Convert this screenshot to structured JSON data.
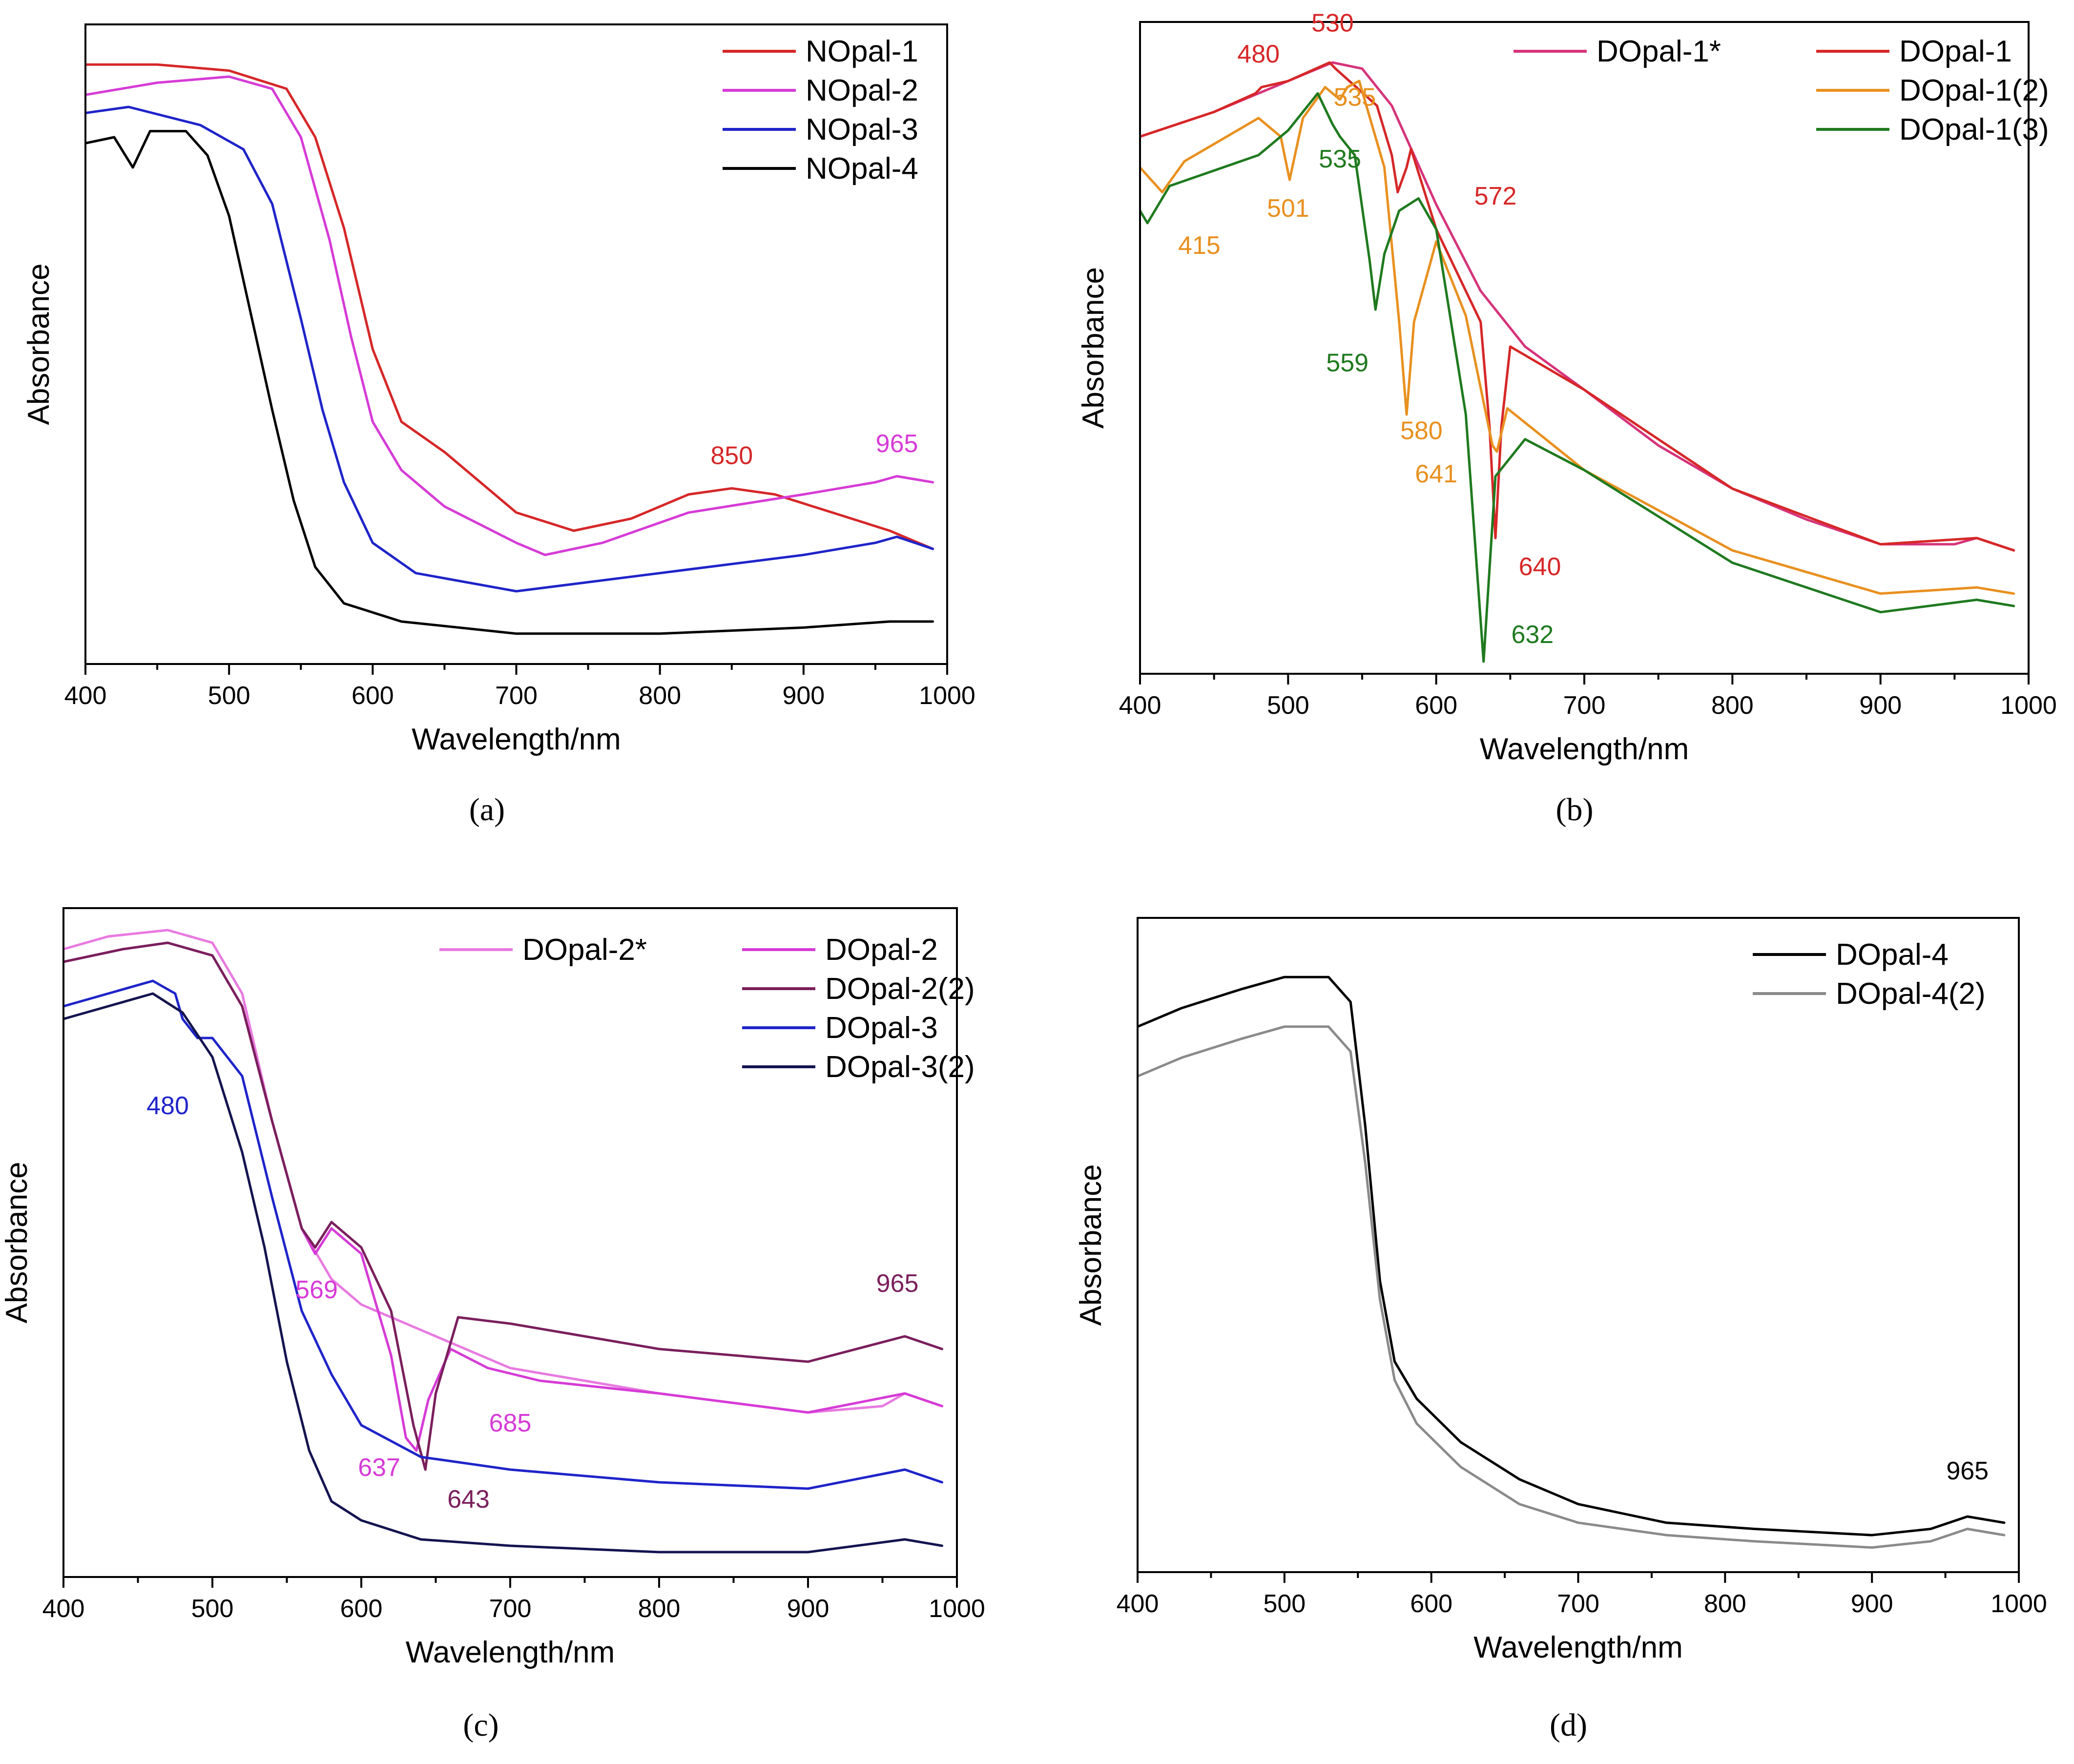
{
  "chart_data": [
    {
      "type": "line",
      "panel_label": "(a)",
      "xlabel": "Wavelength/nm",
      "ylabel": "Absorbance",
      "xlim": [
        400,
        1000
      ],
      "ylim": [
        0,
        1
      ],
      "xticks": [
        400,
        500,
        600,
        700,
        800,
        900,
        1000
      ],
      "legend_position": "top-right",
      "series": [
        {
          "name": "NOpal-1",
          "color": "#d62728",
          "x": [
            400,
            450,
            500,
            540,
            560,
            580,
            600,
            620,
            650,
            700,
            740,
            780,
            820,
            850,
            880,
            920,
            960,
            990
          ],
          "y": [
            0.97,
            0.97,
            0.96,
            0.93,
            0.85,
            0.7,
            0.5,
            0.38,
            0.33,
            0.23,
            0.2,
            0.22,
            0.26,
            0.27,
            0.26,
            0.23,
            0.2,
            0.17
          ]
        },
        {
          "name": "NOpal-2",
          "color": "#d63bd6",
          "x": [
            400,
            450,
            500,
            530,
            550,
            570,
            585,
            600,
            620,
            650,
            700,
            720,
            760,
            820,
            900,
            950,
            965,
            990
          ],
          "y": [
            0.92,
            0.94,
            0.95,
            0.93,
            0.85,
            0.68,
            0.52,
            0.38,
            0.3,
            0.24,
            0.18,
            0.16,
            0.18,
            0.23,
            0.26,
            0.28,
            0.29,
            0.28
          ]
        },
        {
          "name": "NOpal-3",
          "color": "#1f24c9",
          "x": [
            400,
            430,
            480,
            510,
            530,
            550,
            565,
            580,
            600,
            630,
            700,
            800,
            900,
            950,
            965,
            990
          ],
          "y": [
            0.89,
            0.9,
            0.87,
            0.83,
            0.74,
            0.55,
            0.4,
            0.28,
            0.18,
            0.13,
            0.1,
            0.13,
            0.16,
            0.18,
            0.19,
            0.17
          ]
        },
        {
          "name": "NOpal-4",
          "color": "#000000",
          "x": [
            400,
            420,
            433,
            445,
            470,
            485,
            500,
            515,
            530,
            545,
            560,
            580,
            620,
            700,
            800,
            900,
            960,
            990
          ],
          "y": [
            0.84,
            0.85,
            0.8,
            0.86,
            0.86,
            0.82,
            0.72,
            0.56,
            0.4,
            0.25,
            0.14,
            0.08,
            0.05,
            0.03,
            0.03,
            0.04,
            0.05,
            0.05
          ]
        }
      ],
      "annotations": [
        {
          "text": "850",
          "color": "#d62728",
          "x": 850,
          "y": 0.31
        },
        {
          "text": "965",
          "color": "#d63bd6",
          "x": 965,
          "y": 0.33
        }
      ]
    },
    {
      "type": "line",
      "panel_label": "(b)",
      "xlabel": "Wavelength/nm",
      "ylabel": "Absorbance",
      "xlim": [
        400,
        1000
      ],
      "ylim": [
        0,
        1
      ],
      "xticks": [
        400,
        500,
        600,
        700,
        800,
        900,
        1000
      ],
      "legend_position": "top-right",
      "series": [
        {
          "name": "DOpal-1*",
          "color": "#d6337a",
          "x": [
            400,
            450,
            500,
            530,
            550,
            570,
            600,
            630,
            660,
            700,
            750,
            800,
            850,
            900,
            950,
            965,
            990
          ],
          "y": [
            0.85,
            0.89,
            0.94,
            0.97,
            0.96,
            0.9,
            0.74,
            0.6,
            0.51,
            0.44,
            0.35,
            0.28,
            0.23,
            0.19,
            0.19,
            0.2,
            0.18
          ]
        },
        {
          "name": "DOpal-1",
          "color": "#d62728",
          "x": [
            400,
            450,
            478,
            482,
            500,
            528,
            532,
            560,
            570,
            574,
            580,
            583,
            600,
            630,
            636,
            640,
            644,
            650,
            700,
            800,
            900,
            965,
            990
          ],
          "y": [
            0.85,
            0.89,
            0.92,
            0.93,
            0.94,
            0.97,
            0.96,
            0.9,
            0.82,
            0.76,
            0.8,
            0.83,
            0.7,
            0.55,
            0.38,
            0.2,
            0.38,
            0.51,
            0.44,
            0.28,
            0.19,
            0.2,
            0.18
          ]
        },
        {
          "name": "DOpal-1(2)",
          "color": "#e8901f",
          "x": [
            400,
            415,
            430,
            480,
            495,
            501,
            510,
            525,
            535,
            540,
            548,
            565,
            575,
            580,
            585,
            600,
            620,
            638,
            641,
            648,
            700,
            800,
            900,
            965,
            990
          ],
          "y": [
            0.8,
            0.76,
            0.81,
            0.88,
            0.85,
            0.78,
            0.88,
            0.93,
            0.91,
            0.93,
            0.94,
            0.8,
            0.55,
            0.4,
            0.55,
            0.68,
            0.56,
            0.35,
            0.34,
            0.41,
            0.31,
            0.18,
            0.11,
            0.12,
            0.11
          ]
        },
        {
          "name": "DOpal-1(3)",
          "color": "#1f7a1f",
          "x": [
            400,
            405,
            420,
            480,
            500,
            520,
            530,
            535,
            545,
            555,
            559,
            565,
            575,
            588,
            600,
            620,
            632,
            640,
            660,
            700,
            800,
            900,
            965,
            990
          ],
          "y": [
            0.73,
            0.71,
            0.77,
            0.82,
            0.86,
            0.92,
            0.87,
            0.85,
            0.82,
            0.65,
            0.57,
            0.66,
            0.73,
            0.75,
            0.7,
            0.4,
            0.0,
            0.3,
            0.36,
            0.31,
            0.16,
            0.08,
            0.1,
            0.09
          ]
        }
      ],
      "annotations": [
        {
          "text": "480",
          "color": "#d62728",
          "x": 480,
          "y": 0.97
        },
        {
          "text": "530",
          "color": "#d62728",
          "x": 530,
          "y": 1.02
        },
        {
          "text": "535",
          "color": "#e8901f",
          "x": 545,
          "y": 0.9
        },
        {
          "text": "535",
          "color": "#1f7a1f",
          "x": 535,
          "y": 0.8
        },
        {
          "text": "501",
          "color": "#e8901f",
          "x": 500,
          "y": 0.72
        },
        {
          "text": "415",
          "color": "#e8901f",
          "x": 440,
          "y": 0.66
        },
        {
          "text": "572",
          "color": "#d62728",
          "x": 640,
          "y": 0.74
        },
        {
          "text": "559",
          "color": "#1f7a1f",
          "x": 540,
          "y": 0.47
        },
        {
          "text": "580",
          "color": "#e8901f",
          "x": 590,
          "y": 0.36
        },
        {
          "text": "641",
          "color": "#e8901f",
          "x": 600,
          "y": 0.29
        },
        {
          "text": "640",
          "color": "#d62728",
          "x": 670,
          "y": 0.14
        },
        {
          "text": "632",
          "color": "#1f7a1f",
          "x": 665,
          "y": 0.03
        }
      ]
    },
    {
      "type": "line",
      "panel_label": "(c)",
      "xlabel": "Wavelength/nm",
      "ylabel": "Absorbance",
      "xlim": [
        400,
        1000
      ],
      "ylim": [
        0,
        1
      ],
      "xticks": [
        400,
        500,
        600,
        700,
        800,
        900,
        1000
      ],
      "legend_position": "top-right",
      "series": [
        {
          "name": "DOpal-2*",
          "color": "#e87ae0",
          "x": [
            400,
            430,
            470,
            500,
            520,
            540,
            560,
            580,
            600,
            630,
            660,
            700,
            750,
            800,
            900,
            950,
            965,
            990
          ],
          "y": [
            0.97,
            0.99,
            1.0,
            0.98,
            0.9,
            0.7,
            0.53,
            0.45,
            0.41,
            0.38,
            0.35,
            0.31,
            0.29,
            0.27,
            0.24,
            0.25,
            0.27,
            0.25
          ]
        },
        {
          "name": "DOpal-2",
          "color": "#d63bd6",
          "x": [
            400,
            440,
            470,
            500,
            520,
            540,
            560,
            569,
            580,
            600,
            620,
            630,
            637,
            645,
            660,
            685,
            720,
            800,
            900,
            965,
            990
          ],
          "y": [
            0.95,
            0.97,
            0.98,
            0.96,
            0.88,
            0.7,
            0.53,
            0.49,
            0.53,
            0.49,
            0.33,
            0.2,
            0.18,
            0.26,
            0.34,
            0.31,
            0.29,
            0.27,
            0.24,
            0.27,
            0.25
          ]
        },
        {
          "name": "DOpal-2(2)",
          "color": "#7a1f5c",
          "x": [
            400,
            440,
            470,
            500,
            520,
            540,
            560,
            569,
            580,
            600,
            620,
            635,
            643,
            650,
            665,
            700,
            800,
            900,
            965,
            990
          ],
          "y": [
            0.95,
            0.97,
            0.98,
            0.96,
            0.88,
            0.7,
            0.53,
            0.5,
            0.54,
            0.5,
            0.4,
            0.22,
            0.15,
            0.27,
            0.39,
            0.38,
            0.34,
            0.32,
            0.36,
            0.34
          ]
        },
        {
          "name": "DOpal-3",
          "color": "#1f24c9",
          "x": [
            400,
            430,
            460,
            475,
            480,
            490,
            500,
            520,
            540,
            560,
            580,
            600,
            640,
            700,
            800,
            900,
            965,
            990
          ],
          "y": [
            0.88,
            0.9,
            0.92,
            0.9,
            0.86,
            0.83,
            0.83,
            0.77,
            0.58,
            0.4,
            0.3,
            0.22,
            0.17,
            0.15,
            0.13,
            0.12,
            0.15,
            0.13
          ]
        },
        {
          "name": "DOpal-3(2)",
          "color": "#141450",
          "x": [
            400,
            430,
            460,
            480,
            500,
            520,
            535,
            550,
            565,
            580,
            600,
            640,
            700,
            800,
            900,
            965,
            990
          ],
          "y": [
            0.86,
            0.88,
            0.9,
            0.87,
            0.8,
            0.65,
            0.5,
            0.32,
            0.18,
            0.1,
            0.07,
            0.04,
            0.03,
            0.02,
            0.02,
            0.04,
            0.03
          ]
        }
      ],
      "annotations": [
        {
          "text": "480",
          "color": "#1f24c9",
          "x": 470,
          "y": 0.71
        },
        {
          "text": "569",
          "color": "#d63bd6",
          "x": 570,
          "y": 0.42
        },
        {
          "text": "965",
          "color": "#7a1f5c",
          "x": 960,
          "y": 0.43
        },
        {
          "text": "685",
          "color": "#d63bd6",
          "x": 700,
          "y": 0.21
        },
        {
          "text": "637",
          "color": "#d63bd6",
          "x": 612,
          "y": 0.14
        },
        {
          "text": "643",
          "color": "#7a1f5c",
          "x": 672,
          "y": 0.09
        }
      ]
    },
    {
      "type": "line",
      "panel_label": "(d)",
      "xlabel": "Wavelength/nm",
      "ylabel": "Absorbance",
      "xlim": [
        400,
        1000
      ],
      "ylim": [
        0,
        1
      ],
      "xticks": [
        400,
        500,
        600,
        700,
        800,
        900,
        1000
      ],
      "legend_position": "top-right",
      "series": [
        {
          "name": "DOpal-4",
          "color": "#000000",
          "x": [
            400,
            430,
            470,
            500,
            530,
            545,
            555,
            565,
            575,
            590,
            620,
            660,
            700,
            760,
            820,
            900,
            940,
            965,
            990
          ],
          "y": [
            0.86,
            0.89,
            0.92,
            0.94,
            0.94,
            0.9,
            0.7,
            0.45,
            0.32,
            0.26,
            0.19,
            0.13,
            0.09,
            0.06,
            0.05,
            0.04,
            0.05,
            0.07,
            0.06
          ]
        },
        {
          "name": "DOpal-4(2)",
          "color": "#8a8a8a",
          "x": [
            400,
            430,
            470,
            500,
            530,
            545,
            555,
            565,
            575,
            590,
            620,
            660,
            700,
            760,
            820,
            900,
            940,
            965,
            990
          ],
          "y": [
            0.78,
            0.81,
            0.84,
            0.86,
            0.86,
            0.82,
            0.64,
            0.42,
            0.29,
            0.22,
            0.15,
            0.09,
            0.06,
            0.04,
            0.03,
            0.02,
            0.03,
            0.05,
            0.04
          ]
        }
      ],
      "annotations": [
        {
          "text": "965",
          "color": "#000000",
          "x": 965,
          "y": 0.13
        }
      ]
    }
  ]
}
